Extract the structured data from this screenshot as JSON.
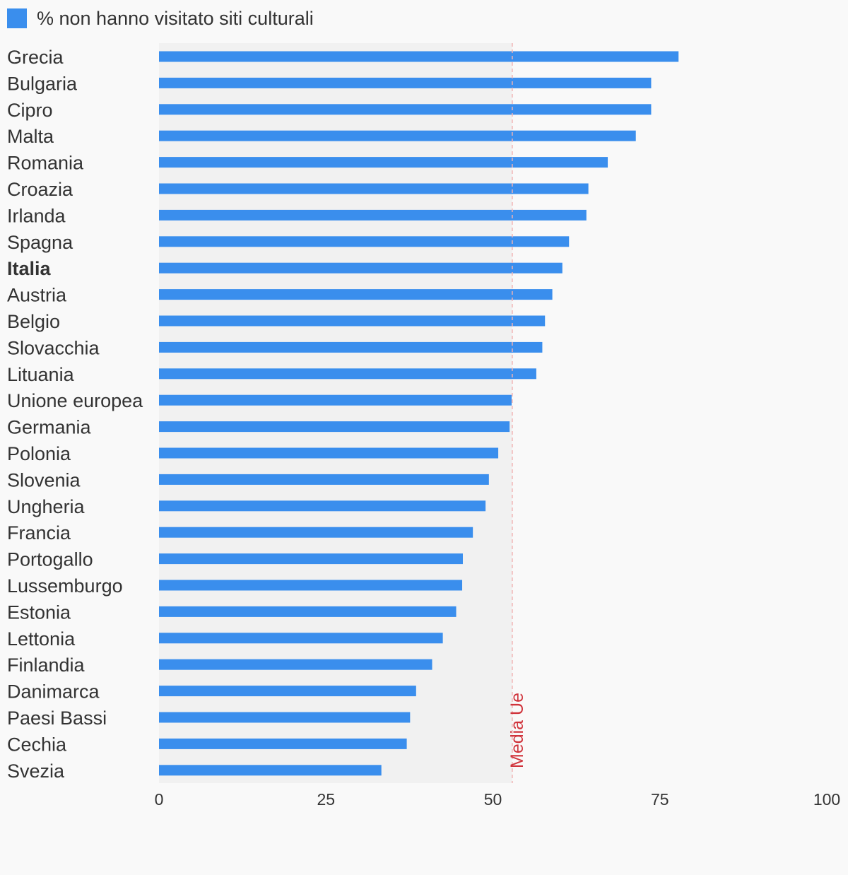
{
  "chart_data": {
    "type": "bar",
    "orientation": "horizontal",
    "title": "",
    "xlabel": "",
    "ylabel": "",
    "legend_position": "top-left",
    "grid": false,
    "xlim": [
      0,
      100
    ],
    "x_ticks": [
      "0",
      "25",
      "50",
      "75",
      "100"
    ],
    "categories": [
      "Grecia",
      "Bulgaria",
      "Cipro",
      "Malta",
      "Romania",
      "Croazia",
      "Irlanda",
      "Spagna",
      "Italia",
      "Austria",
      "Belgio",
      "Slovacchia",
      "Lituania",
      "Unione europea",
      "Germania",
      "Polonia",
      "Slovenia",
      "Ungheria",
      "Francia",
      "Portogallo",
      "Lussemburgo",
      "Estonia",
      "Lettonia",
      "Finlandia",
      "Danimarca",
      "Paesi Bassi",
      "Cechia",
      "Svezia"
    ],
    "highlighted_category": "Italia",
    "series": [
      {
        "name": "% non hanno visitato siti culturali",
        "color": "#3a8eed",
        "values": [
          77.8,
          73.7,
          73.7,
          71.4,
          67.2,
          64.3,
          64.0,
          61.4,
          60.4,
          58.9,
          57.8,
          57.4,
          56.5,
          52.8,
          52.5,
          50.8,
          49.4,
          48.9,
          47.0,
          45.5,
          45.4,
          44.5,
          42.5,
          40.9,
          38.5,
          37.6,
          37.1,
          33.3
        ]
      }
    ],
    "reference_line": {
      "label": "Media Ue",
      "value": 52.9,
      "color": "#d0343c"
    },
    "colors": {
      "bar": "#3a8eed",
      "plot_band": "#f1f1f1",
      "background": "#f9f9f9",
      "text": "#333333"
    }
  }
}
